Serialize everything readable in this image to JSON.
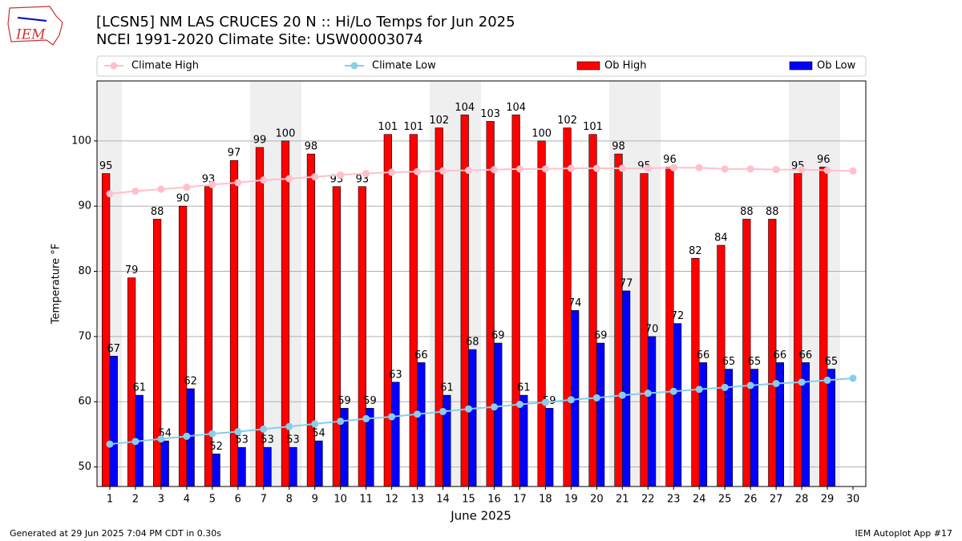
{
  "logo": "IEM",
  "footer": {
    "left": "Generated at 29 Jun 2025 7:04 PM CDT in 0.30s",
    "right": "IEM Autoplot App #17"
  },
  "chart_data": {
    "type": "bar",
    "title": "[LCSN5] NM LAS CRUCES 20 N :: Hi/Lo Temps for Jun 2025",
    "subtitle": "NCEI 1991-2020 Climate Site: USW00003074",
    "x_label": "June 2025",
    "y_label": "Temperature °F",
    "categories": [
      "1",
      "2",
      "3",
      "4",
      "5",
      "6",
      "7",
      "8",
      "9",
      "10",
      "11",
      "12",
      "13",
      "14",
      "15",
      "16",
      "17",
      "18",
      "19",
      "20",
      "21",
      "22",
      "23",
      "24",
      "25",
      "26",
      "27",
      "28",
      "29",
      "30"
    ],
    "ylim": [
      47,
      109.2
    ],
    "yticks": [
      50,
      60,
      70,
      80,
      90,
      100
    ],
    "grid": true,
    "series": [
      {
        "name": "Climate High",
        "type": "line",
        "color": "#ffc0cb",
        "values": [
          91.9,
          92.3,
          92.6,
          92.9,
          93.3,
          93.6,
          94.0,
          94.2,
          94.5,
          94.8,
          95.0,
          95.2,
          95.3,
          95.4,
          95.5,
          95.6,
          95.7,
          95.7,
          95.8,
          95.8,
          95.8,
          95.8,
          95.9,
          95.9,
          95.7,
          95.7,
          95.6,
          95.6,
          95.5,
          95.4
        ]
      },
      {
        "name": "Climate Low",
        "type": "line",
        "color": "#87ceeb",
        "values": [
          53.5,
          53.9,
          54.3,
          54.7,
          55.1,
          55.4,
          55.8,
          56.2,
          56.6,
          57.0,
          57.4,
          57.7,
          58.1,
          58.5,
          58.9,
          59.2,
          59.6,
          59.9,
          60.3,
          60.6,
          61.0,
          61.3,
          61.6,
          61.9,
          62.2,
          62.5,
          62.8,
          63.0,
          63.3,
          63.6
        ]
      },
      {
        "name": "Ob High",
        "type": "bar",
        "color": "#ff0000",
        "values": [
          95,
          79,
          88,
          90,
          93,
          97,
          99,
          100,
          98,
          93,
          93,
          101,
          101,
          102,
          104,
          103,
          104,
          100,
          102,
          101,
          98,
          95,
          96,
          82,
          84,
          88,
          88,
          95,
          96,
          null
        ]
      },
      {
        "name": "Ob Low",
        "type": "bar",
        "color": "#0000ff",
        "values": [
          67,
          61,
          54,
          62,
          52,
          53,
          53,
          53,
          54,
          59,
          59,
          63,
          66,
          61,
          68,
          69,
          61,
          59,
          74,
          69,
          77,
          70,
          72,
          66,
          65,
          65,
          66,
          66,
          65,
          null
        ]
      }
    ]
  }
}
